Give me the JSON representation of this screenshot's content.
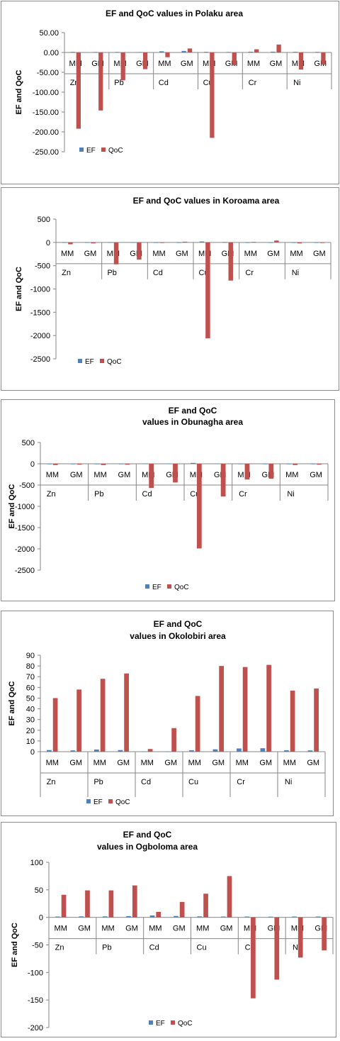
{
  "chart_data": [
    {
      "type": "bar",
      "title": [
        "EF and QoC values in Polaku area"
      ],
      "ylabel": "EF and QoC",
      "ylim": [
        -250,
        50
      ],
      "ystep": 50,
      "ydecimals": 2,
      "groups": [
        "Zn",
        "Pb",
        "Cd",
        "Cu",
        "Cr",
        "Ni"
      ],
      "subcategories": [
        "MM",
        "GM"
      ],
      "series": [
        {
          "name": "EF",
          "color": "#4f81bd",
          "values": [
            1.5,
            1.2,
            1.3,
            1.1,
            3.0,
            3.8,
            1.5,
            1.2,
            1.8,
            2.0,
            1.6,
            1.4
          ]
        },
        {
          "name": "QoC",
          "color": "#c0504d",
          "values": [
            -192,
            -146,
            -70,
            -42,
            -12,
            10,
            -215,
            -32,
            8,
            20,
            -43,
            -30
          ]
        }
      ],
      "legend_position": "bottom-left"
    },
    {
      "type": "bar",
      "title": [
        "EF and QoC values in Koroama area"
      ],
      "ylabel": "EF and QoC",
      "ylim": [
        -2500,
        500
      ],
      "ystep": 500,
      "ydecimals": 0,
      "groups": [
        "Zn",
        "Pb",
        "Cd",
        "Cu",
        "Cr",
        "Ni"
      ],
      "subcategories": [
        "MM",
        "GM"
      ],
      "series": [
        {
          "name": "EF",
          "color": "#4f81bd",
          "values": [
            2,
            2,
            5,
            4,
            1,
            1,
            20,
            8,
            1,
            1,
            1,
            1
          ]
        },
        {
          "name": "QoC",
          "color": "#c0504d",
          "values": [
            -40,
            -20,
            -470,
            -370,
            0,
            15,
            -2060,
            -820,
            10,
            40,
            -20,
            0
          ]
        }
      ],
      "legend_position": "bottom-left"
    },
    {
      "type": "bar",
      "title": [
        "EF and QoC",
        "values in Obunagha area"
      ],
      "ylabel": "EF and QoC",
      "ylim": [
        -2500,
        500
      ],
      "ystep": 500,
      "ydecimals": 0,
      "groups": [
        "Zn",
        "Pb",
        "Cd",
        "Cu",
        "Cr",
        "Ni"
      ],
      "subcategories": [
        "MM",
        "GM"
      ],
      "series": [
        {
          "name": "EF",
          "color": "#4f81bd",
          "values": [
            2,
            2,
            2,
            2,
            6,
            5,
            20,
            8,
            3,
            3,
            2,
            2
          ]
        },
        {
          "name": "QoC",
          "color": "#c0504d",
          "values": [
            -30,
            -20,
            -30,
            -20,
            -570,
            -440,
            -1990,
            -770,
            -370,
            -350,
            -30,
            -20
          ]
        }
      ],
      "legend_position": "bottom-center"
    },
    {
      "type": "bar",
      "title": [
        "EF and QoC",
        "values in Okolobiri area"
      ],
      "ylabel": "EF and QoC",
      "ylim": [
        0,
        90
      ],
      "ystep": 10,
      "ydecimals": 0,
      "groups": [
        "Zn",
        "Pb",
        "Cd",
        "Cu",
        "Cr",
        "Ni"
      ],
      "subcategories": [
        "MM",
        "GM"
      ],
      "series": [
        {
          "name": "EF",
          "color": "#4f81bd",
          "values": [
            1.5,
            1.2,
            2.0,
            1.5,
            0.3,
            0.3,
            1.3,
            2.2,
            3.0,
            3.2,
            1.3,
            1.2
          ]
        },
        {
          "name": "QoC",
          "color": "#c0504d",
          "values": [
            50,
            58,
            68,
            73,
            2.5,
            22,
            52,
            80,
            79,
            81,
            57,
            59
          ]
        }
      ],
      "legend_position": "bottom-center"
    },
    {
      "type": "bar",
      "title": [
        "EF and QoC",
        "values in Ogboloma area"
      ],
      "ylabel": "EF and QoC",
      "ylim": [
        -200,
        100
      ],
      "ystep": 50,
      "ydecimals": 0,
      "groups": [
        "Zn",
        "Pb",
        "Cd",
        "Cu",
        "Cr",
        "Ni"
      ],
      "subcategories": [
        "MM",
        "GM"
      ],
      "series": [
        {
          "name": "EF",
          "color": "#4f81bd",
          "values": [
            1.5,
            1.8,
            1.8,
            2.2,
            3.5,
            2.5,
            1.8,
            1.5,
            1.5,
            1.3,
            1.5,
            1.5
          ]
        },
        {
          "name": "QoC",
          "color": "#c0504d",
          "values": [
            41,
            49,
            49,
            58,
            10,
            28,
            43,
            75,
            -147,
            -113,
            -73,
            -60
          ]
        }
      ],
      "legend_position": "bottom-center"
    }
  ]
}
